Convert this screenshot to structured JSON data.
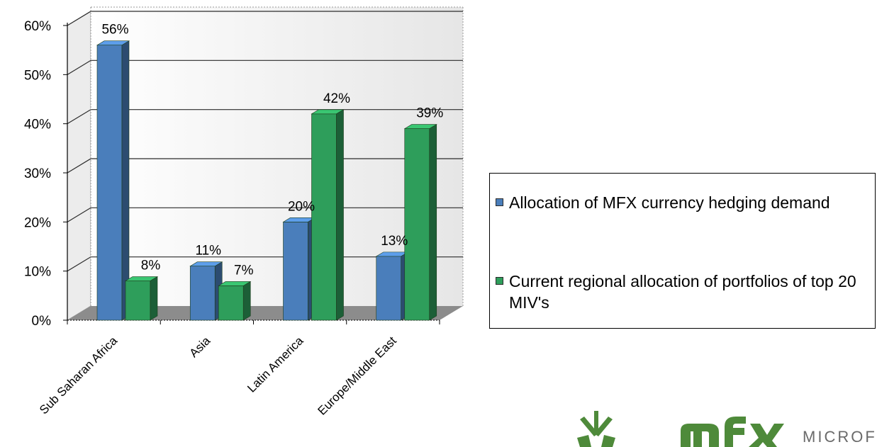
{
  "chart_data": {
    "type": "bar",
    "categories": [
      "Sub Saharan Africa",
      "Asia",
      "Latin America",
      "Europe/Middle East"
    ],
    "series": [
      {
        "name": "Allocation of MFX currency hedging demand",
        "values": [
          56,
          11,
          20,
          13
        ],
        "labels": [
          "56%",
          "11%",
          "20%",
          "13%"
        ],
        "color": "#4a7ebb"
      },
      {
        "name": "Current regional allocation of portfolios of top 20 MIV's",
        "values": [
          8,
          7,
          42,
          39
        ],
        "labels": [
          "8%",
          "7%",
          "42%",
          "39%"
        ],
        "color": "#2e9e5b"
      }
    ],
    "y_ticks": [
      "0%",
      "10%",
      "20%",
      "30%",
      "40%",
      "50%",
      "60%"
    ],
    "ylim": [
      0,
      60
    ],
    "grid": true,
    "legend_position": "right",
    "title": "",
    "xlabel": "",
    "ylabel": ""
  },
  "legend": {
    "item1": "Allocation of MFX currency hedging demand",
    "item2": "Current regional allocation of portfolios of top 20 MIV's"
  },
  "logo": {
    "text": "MICROF"
  },
  "colors": {
    "blue": "#4a7ebb",
    "green": "#2e9e5b",
    "logo_green": "#4e8a3a"
  }
}
